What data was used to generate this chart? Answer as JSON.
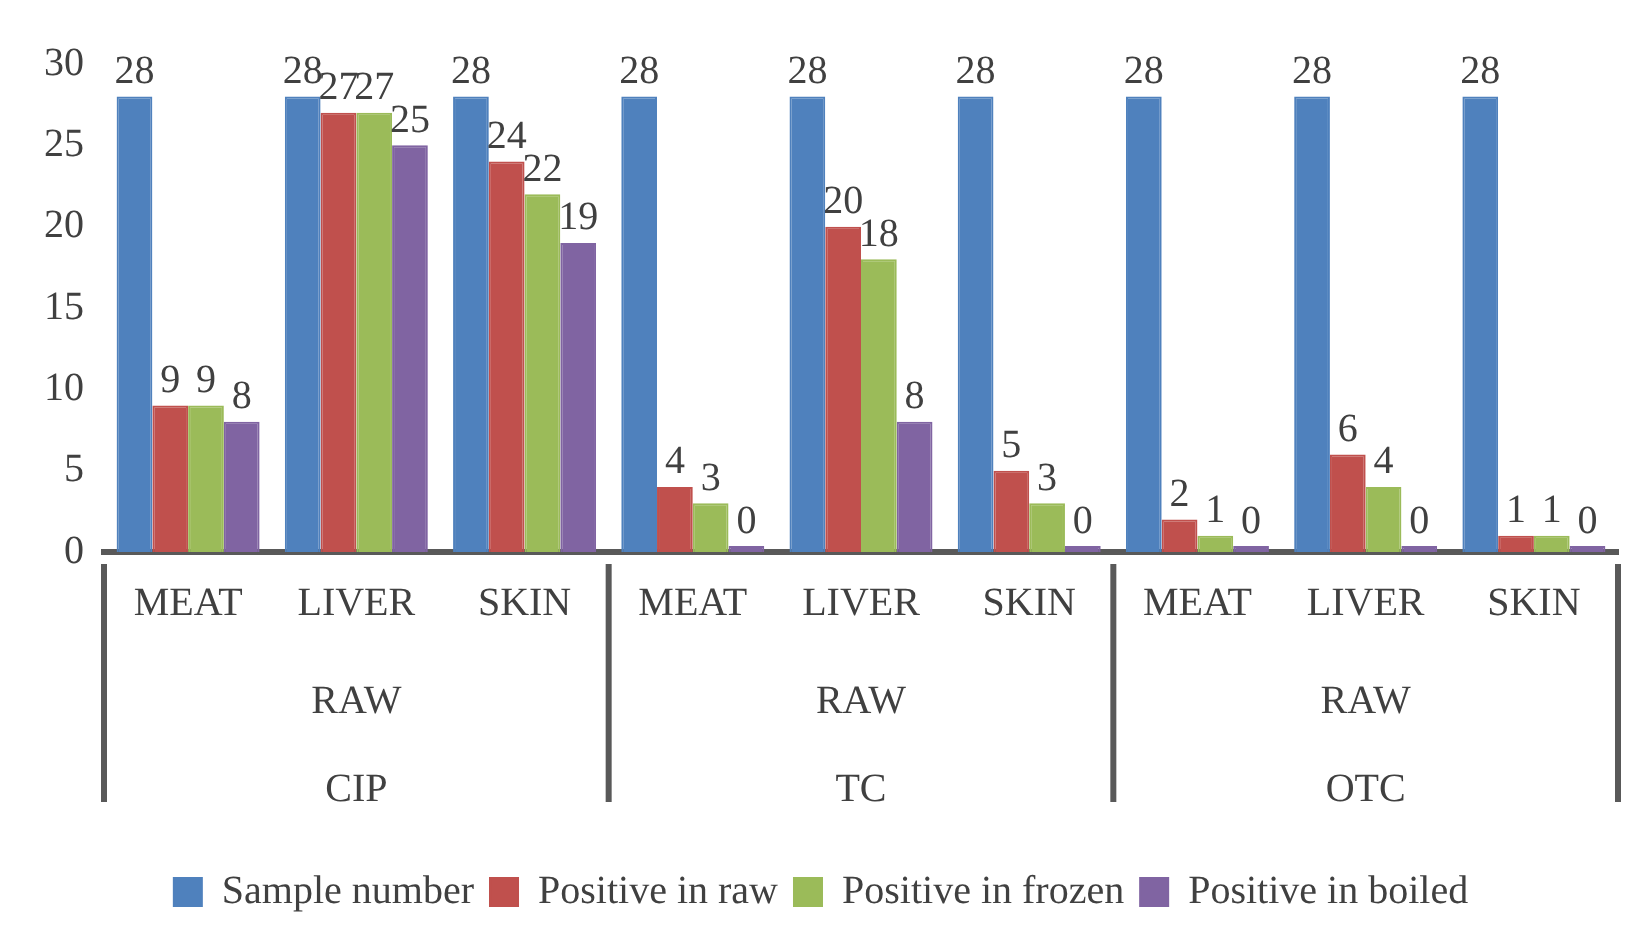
{
  "chart_data": {
    "type": "bar",
    "categories": [
      "MEAT",
      "LIVER",
      "SKIN",
      "MEAT",
      "LIVER",
      "SKIN",
      "MEAT",
      "LIVER",
      "SKIN"
    ],
    "series": [
      {
        "name": "Sample number",
        "color": "#4f81bd",
        "values": [
          28,
          28,
          28,
          28,
          28,
          28,
          28,
          28,
          28
        ]
      },
      {
        "name": "Positive in raw",
        "color": "#c0504d",
        "values": [
          9,
          27,
          24,
          4,
          20,
          5,
          2,
          6,
          1
        ]
      },
      {
        "name": "Positive in frozen",
        "color": "#9bbb59",
        "values": [
          9,
          27,
          22,
          3,
          18,
          3,
          1,
          4,
          1
        ]
      },
      {
        "name": "Positive in boiled",
        "color": "#8064a2",
        "values": [
          8,
          25,
          19,
          0,
          8,
          0,
          0,
          0,
          0
        ]
      }
    ],
    "annotations": [
      "RAW",
      "RAW",
      "RAW",
      "CIP",
      "TC",
      "OTC"
    ],
    "ylim": [
      0,
      30
    ],
    "yticks": [
      0,
      5,
      10,
      15,
      20,
      25,
      30
    ],
    "grid": false,
    "legend": "bottom",
    "data_labels": true
  }
}
